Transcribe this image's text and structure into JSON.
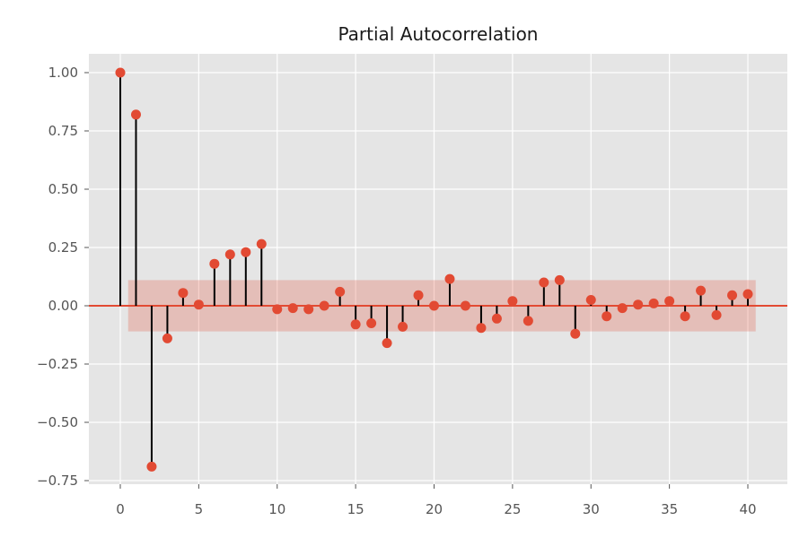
{
  "chart_data": {
    "type": "stem",
    "title": "Partial Autocorrelation",
    "xlabel": "",
    "ylabel": "",
    "xlim": [
      -1.8,
      42.5
    ],
    "ylim": [
      -0.75,
      1.05
    ],
    "x_ticks": [
      0,
      5,
      10,
      15,
      20,
      25,
      30,
      35,
      40
    ],
    "y_ticks": [
      1.0,
      0.75,
      0.5,
      0.25,
      0.0,
      -0.25,
      -0.5,
      -0.75
    ],
    "y_tick_labels": [
      "1.00",
      "0.75",
      "0.50",
      "0.25",
      "0.00",
      "−0.25",
      "−0.50",
      "−0.75"
    ],
    "grid": true,
    "confidence_band": {
      "from_lag": 0.5,
      "to_lag": 40.5,
      "upper": 0.11,
      "lower": -0.11
    },
    "lags": [
      0,
      1,
      2,
      3,
      4,
      5,
      6,
      7,
      8,
      9,
      10,
      11,
      12,
      13,
      14,
      15,
      16,
      17,
      18,
      19,
      20,
      21,
      22,
      23,
      24,
      25,
      26,
      27,
      28,
      29,
      30,
      31,
      32,
      33,
      34,
      35,
      36,
      37,
      38,
      39,
      40
    ],
    "values": [
      1.0,
      0.82,
      -0.69,
      -0.14,
      0.055,
      0.005,
      0.18,
      0.22,
      0.23,
      0.265,
      -0.015,
      -0.01,
      -0.015,
      0.0,
      0.06,
      -0.08,
      -0.075,
      -0.16,
      -0.09,
      0.045,
      0.0,
      0.115,
      0.0,
      -0.095,
      -0.055,
      0.02,
      -0.065,
      0.1,
      0.11,
      -0.12,
      0.025,
      -0.045,
      -0.01,
      0.005,
      0.01,
      0.02,
      -0.045,
      0.065,
      -0.04,
      0.045,
      0.05
    ]
  },
  "colors": {
    "background": "#e5e5e5",
    "grid": "#ffffff",
    "stem": "#000000",
    "marker": "#e24a33",
    "zero_line": "#e24a33",
    "band": "#e24a33"
  }
}
